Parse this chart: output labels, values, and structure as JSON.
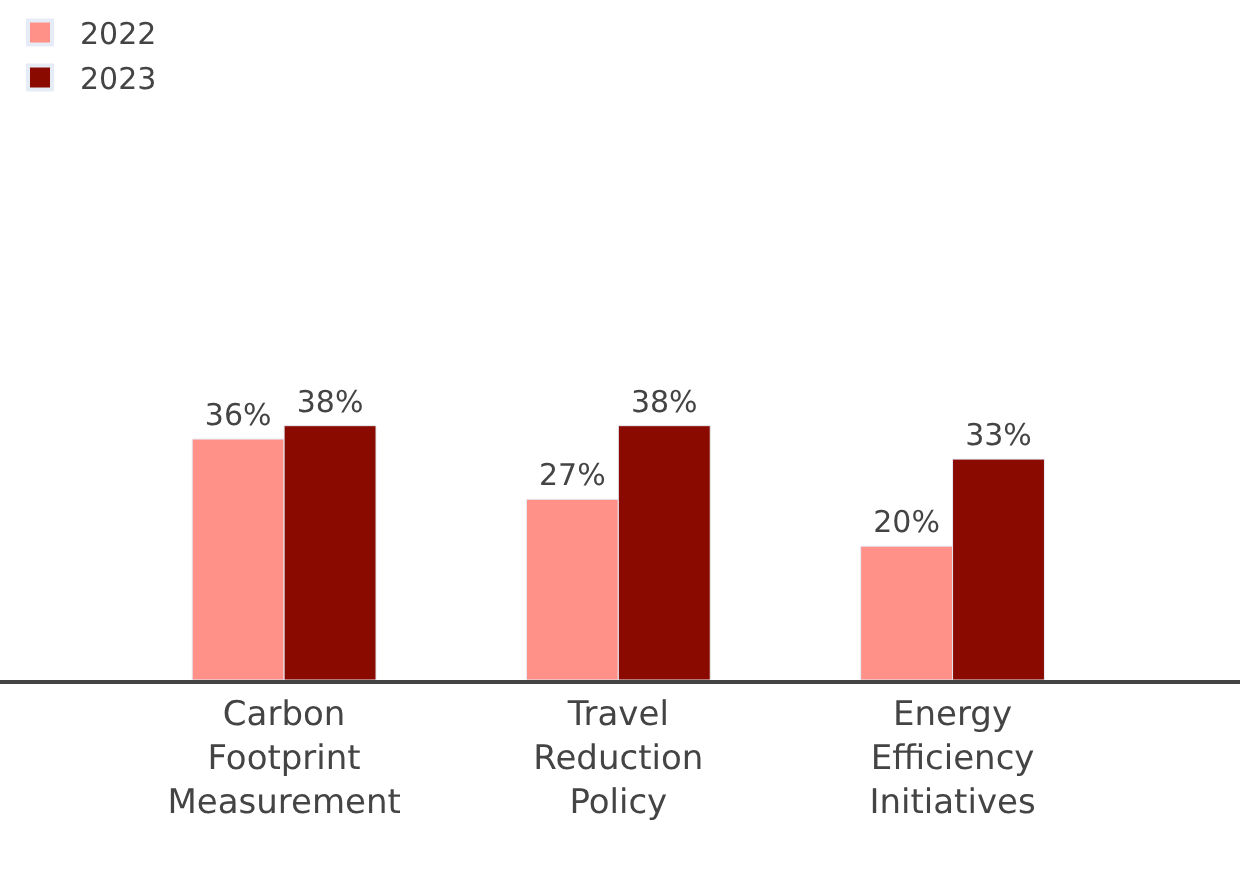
{
  "chart_data": {
    "type": "bar",
    "categories": [
      "Carbon Footprint Measurement",
      "Travel Reduction Policy",
      "Energy Efficiency Initiatives"
    ],
    "series": [
      {
        "name": "2022",
        "color": "#ff9189",
        "values": [
          36,
          27,
          20
        ],
        "value_labels": [
          "36%",
          "27%",
          "20%"
        ]
      },
      {
        "name": "2023",
        "color": "#8b0a00",
        "values": [
          38,
          38,
          33
        ],
        "value_labels": [
          "38%",
          "38%",
          "33%"
        ]
      }
    ],
    "legend": "top left",
    "tick_labels": "x"
  }
}
